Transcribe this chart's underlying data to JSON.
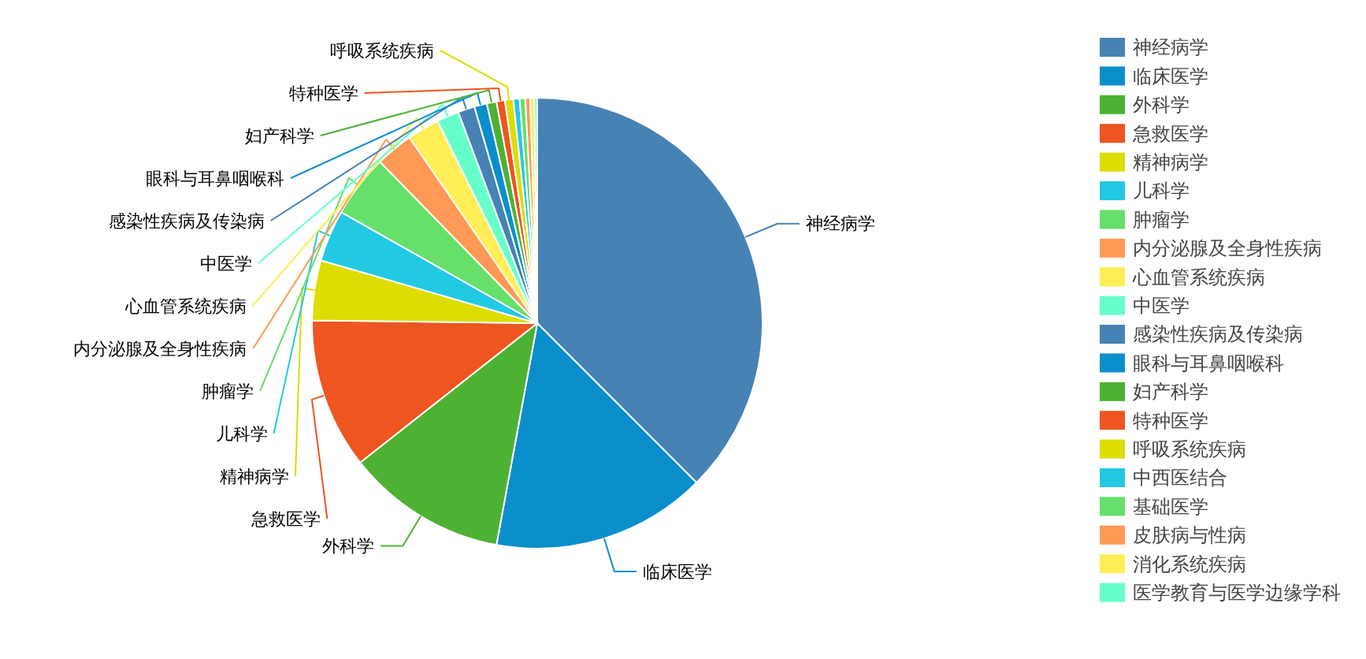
{
  "chart_data": {
    "type": "pie",
    "categories": [
      "神经病学",
      "临床医学",
      "外科学",
      "急救医学",
      "精神病学",
      "儿科学",
      "肿瘤学",
      "内分泌腺及全身性疾病",
      "心血管系统疾病",
      "中医学",
      "感染性疾病及传染病",
      "眼科与耳鼻咽喉科",
      "妇产科学",
      "特种医学",
      "呼吸系统疾病",
      "中西医结合",
      "基础医学",
      "皮肤病与性病",
      "消化系统疾病",
      "医学教育与医学边缘学科"
    ],
    "values": [
      37.5,
      15.4,
      11.5,
      10.8,
      4.3,
      3.7,
      4.5,
      2.7,
      2.3,
      1.6,
      1.2,
      0.9,
      0.7,
      0.6,
      0.6,
      0.45,
      0.4,
      0.35,
      0.3,
      0.2
    ],
    "colors": [
      "#4682b4",
      "#0a8fca",
      "#4db233",
      "#ee5520",
      "#dddd00",
      "#22c9e3",
      "#66e06b",
      "#ff9955",
      "#ffee55",
      "#66ffcc",
      "#4682b4",
      "#0a8fca",
      "#4db233",
      "#ee5520",
      "#dddd00",
      "#22c9e3",
      "#66e06b",
      "#ff9955",
      "#ffee55",
      "#66ffcc"
    ],
    "legend": "right"
  }
}
